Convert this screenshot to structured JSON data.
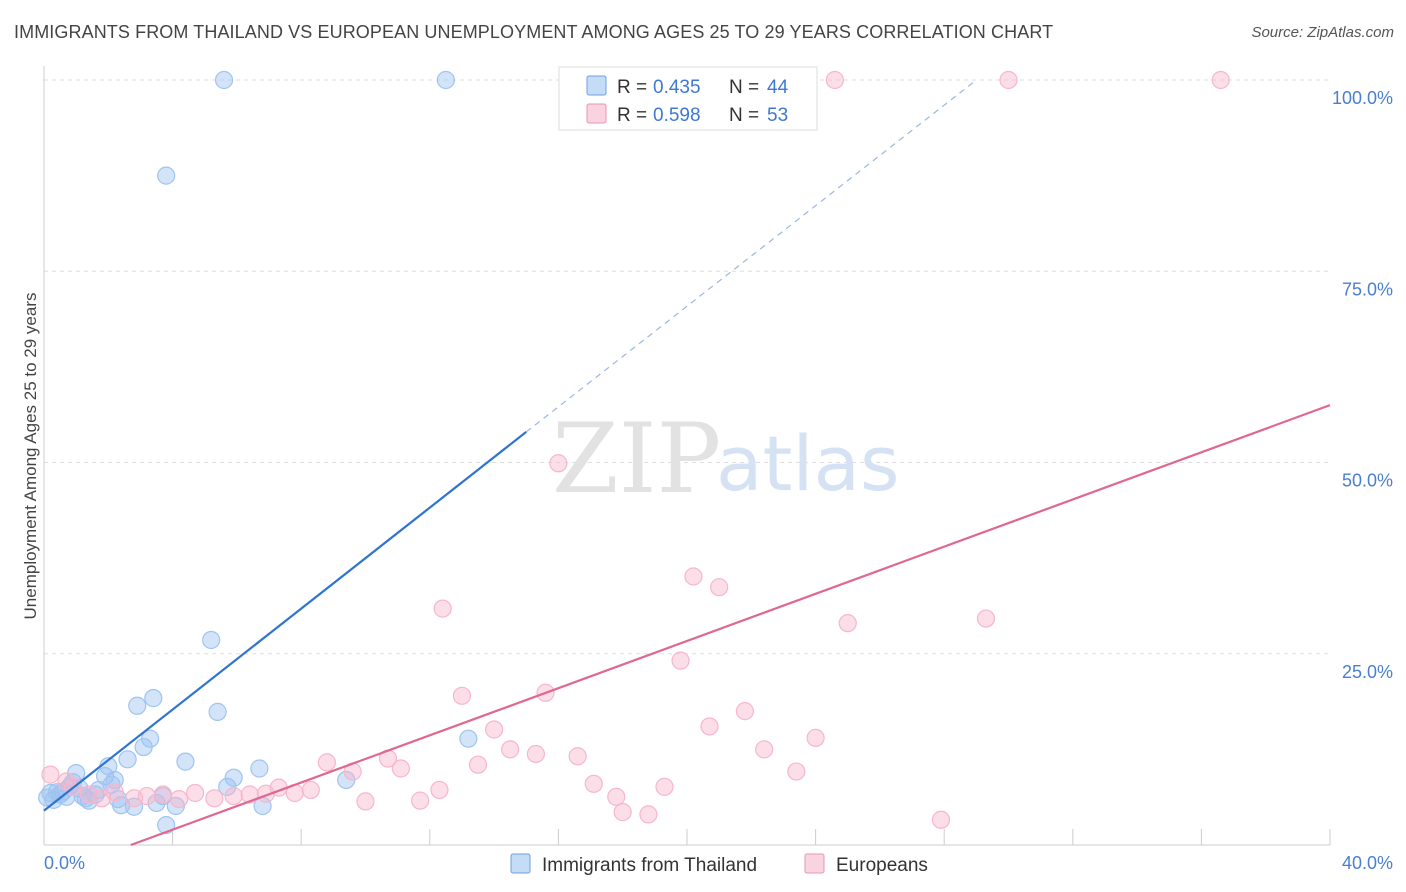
{
  "header": {
    "title": "IMMIGRANTS FROM THAILAND VS EUROPEAN UNEMPLOYMENT AMONG AGES 25 TO 29 YEARS CORRELATION CHART",
    "source": "Source: ZipAtlas.com"
  },
  "watermark": {
    "zip": "ZIP",
    "atlas": "atlas"
  },
  "legend": {
    "r_label": "R =",
    "n_label": "N =",
    "entries": [
      {
        "r": "0.435",
        "n": "44",
        "color": "#9ec4f2"
      },
      {
        "r": "0.598",
        "n": "53",
        "color": "#f7b6cb"
      }
    ]
  },
  "chart_data": {
    "type": "scatter",
    "title": "IMMIGRANTS FROM THAILAND VS EUROPEAN UNEMPLOYMENT AMONG AGES 25 TO 29 YEARS CORRELATION CHART",
    "xlabel": "",
    "ylabel": "Unemployment Among Ages 25 to 29 years",
    "xlim": [
      0,
      40
    ],
    "ylim": [
      0,
      100
    ],
    "x_tick_labels": [
      "0.0%",
      "40.0%"
    ],
    "y_ticks": [
      25,
      50,
      75,
      100
    ],
    "y_tick_labels": [
      "25.0%",
      "50.0%",
      "75.0%",
      "100.0%"
    ],
    "grid": true,
    "legend_position": "top-center",
    "series": [
      {
        "name": "Immigrants from Thailand",
        "color": "#9ec4f2",
        "line_color": "#2f74cf",
        "points": [
          [
            0.1,
            6.2
          ],
          [
            0.2,
            6.8
          ],
          [
            0.3,
            5.9
          ],
          [
            0.5,
            6.6
          ],
          [
            0.6,
            7.0
          ],
          [
            0.7,
            6.3
          ],
          [
            0.8,
            7.6
          ],
          [
            0.9,
            8.2
          ],
          [
            1.0,
            9.4
          ],
          [
            1.1,
            7.4
          ],
          [
            1.3,
            6.1
          ],
          [
            1.4,
            5.8
          ],
          [
            1.6,
            6.6
          ],
          [
            1.7,
            7.2
          ],
          [
            1.9,
            9.0
          ],
          [
            2.0,
            10.3
          ],
          [
            2.1,
            7.9
          ],
          [
            2.3,
            6.0
          ],
          [
            2.4,
            5.2
          ],
          [
            2.6,
            11.2
          ],
          [
            2.8,
            5.0
          ],
          [
            2.9,
            18.2
          ],
          [
            3.1,
            12.8
          ],
          [
            3.3,
            13.9
          ],
          [
            3.4,
            19.2
          ],
          [
            3.7,
            6.4
          ],
          [
            3.8,
            2.6
          ],
          [
            4.1,
            5.1
          ],
          [
            4.4,
            10.9
          ],
          [
            5.2,
            26.8
          ],
          [
            5.4,
            17.4
          ],
          [
            5.7,
            7.6
          ],
          [
            5.9,
            8.8
          ],
          [
            6.7,
            10.0
          ],
          [
            6.8,
            5.1
          ],
          [
            9.4,
            8.5
          ],
          [
            13.2,
            13.9
          ],
          [
            3.8,
            87.5
          ],
          [
            5.6,
            100
          ],
          [
            12.5,
            100
          ],
          [
            0.4,
            6.9
          ],
          [
            1.2,
            6.4
          ],
          [
            2.2,
            8.5
          ],
          [
            3.5,
            5.5
          ]
        ],
        "trend": {
          "x0": 0,
          "y0": 4.5,
          "x1": 15,
          "y1": 54.0,
          "dashed_to_x": 29,
          "dashed_to_y": 100
        }
      },
      {
        "name": "Europeans",
        "color": "#f7b6cb",
        "line_color": "#e06790",
        "points": [
          [
            0.2,
            9.2
          ],
          [
            0.7,
            8.3
          ],
          [
            0.9,
            7.6
          ],
          [
            1.4,
            6.6
          ],
          [
            1.8,
            6.1
          ],
          [
            2.2,
            6.9
          ],
          [
            2.8,
            6.1
          ],
          [
            3.2,
            6.4
          ],
          [
            3.7,
            6.6
          ],
          [
            4.2,
            6.0
          ],
          [
            4.7,
            6.8
          ],
          [
            5.3,
            6.1
          ],
          [
            5.9,
            6.4
          ],
          [
            6.4,
            6.6
          ],
          [
            6.9,
            6.7
          ],
          [
            7.3,
            7.5
          ],
          [
            7.8,
            6.8
          ],
          [
            8.3,
            7.2
          ],
          [
            8.8,
            10.8
          ],
          [
            9.6,
            9.6
          ],
          [
            10.0,
            5.7
          ],
          [
            10.7,
            11.3
          ],
          [
            11.1,
            10.0
          ],
          [
            11.7,
            5.8
          ],
          [
            12.3,
            7.2
          ],
          [
            12.4,
            30.9
          ],
          [
            13.0,
            19.5
          ],
          [
            13.5,
            10.5
          ],
          [
            14.0,
            15.1
          ],
          [
            14.5,
            12.5
          ],
          [
            15.3,
            11.9
          ],
          [
            15.6,
            19.9
          ],
          [
            16.0,
            49.9
          ],
          [
            16.6,
            11.6
          ],
          [
            17.1,
            8.0
          ],
          [
            17.8,
            6.3
          ],
          [
            18.0,
            4.3
          ],
          [
            18.8,
            4.0
          ],
          [
            19.3,
            7.6
          ],
          [
            19.8,
            24.1
          ],
          [
            20.2,
            35.1
          ],
          [
            20.7,
            15.5
          ],
          [
            21.0,
            33.7
          ],
          [
            21.8,
            17.5
          ],
          [
            22.4,
            12.5
          ],
          [
            23.4,
            9.6
          ],
          [
            24.0,
            14.0
          ],
          [
            25.0,
            29.0
          ],
          [
            27.9,
            3.3
          ],
          [
            29.3,
            29.6
          ],
          [
            24.6,
            100
          ],
          [
            30.0,
            100
          ],
          [
            36.6,
            100
          ]
        ],
        "trend": {
          "x0": 2.7,
          "y0": 0,
          "x1": 40,
          "y1": 57.5
        }
      }
    ]
  }
}
